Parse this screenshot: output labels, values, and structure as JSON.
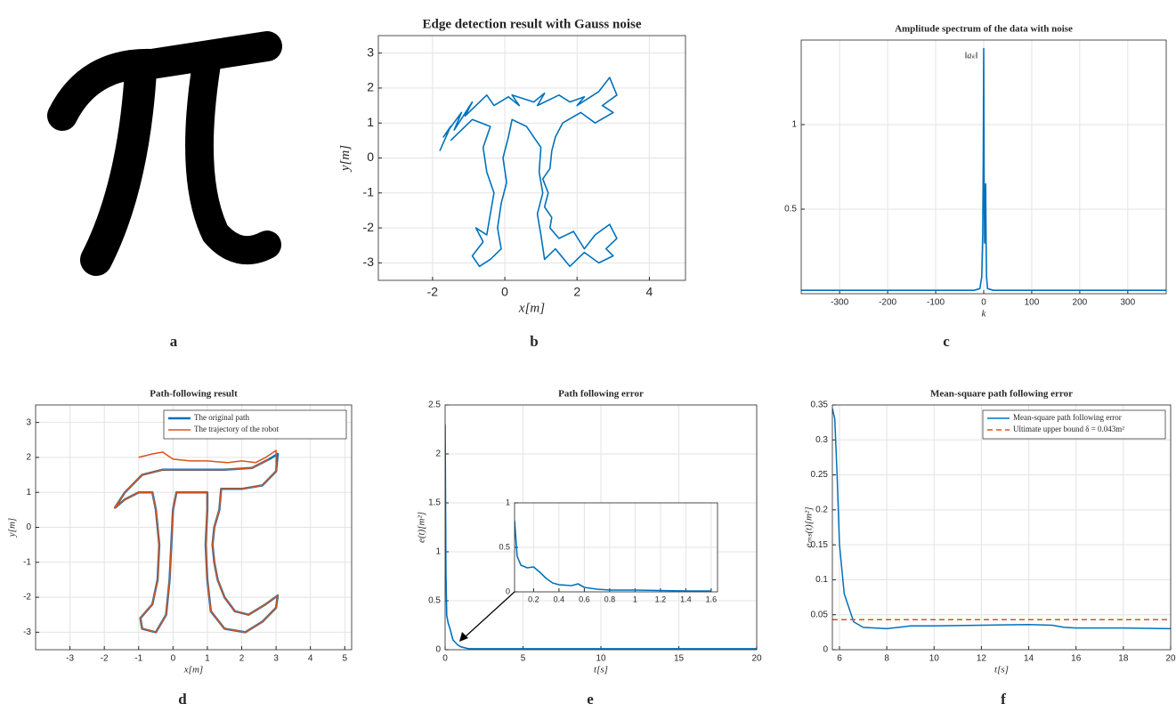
{
  "chart_data": [
    {
      "type": "image",
      "panel_label": "a"
    },
    {
      "type": "line",
      "panel_label": "b",
      "title": "Edge detection result with Gauss noise",
      "xlabel": "x[m]",
      "ylabel": "y[m]",
      "xlim": [
        -3.5,
        5
      ],
      "xticks": [
        -2,
        0,
        2,
        4
      ],
      "ylim": [
        -3.5,
        3.5
      ],
      "yticks": [
        -3,
        -2,
        -1,
        0,
        1,
        2,
        3
      ],
      "grid": true,
      "series": [
        {
          "color": "#0072bd",
          "x": [
            -1.8,
            -1.5,
            -1.7,
            -1.2,
            -1.4,
            -0.9,
            -1.1,
            -0.5,
            -0.3,
            0.1,
            0.4,
            0.2,
            0.8,
            1.1,
            0.9,
            1.5,
            1.8,
            2.2,
            2.0,
            2.6,
            2.9,
            3.1,
            2.7,
            3.0,
            2.5,
            2.1,
            1.6,
            1.4,
            1.3,
            1.25,
            1.05,
            1.2,
            1.1,
            1.3,
            1.25,
            1.5,
            1.9,
            2.2,
            2.5,
            2.9,
            3.1,
            2.8,
            3.0,
            2.6,
            2.2,
            1.8,
            1.4,
            1.1,
            1.0,
            0.9,
            1.05,
            0.95,
            1.0,
            0.6,
            0.2,
            0.1,
            -0.05,
            0.05,
            -0.1,
            -0.2,
            -0.1,
            -0.4,
            -0.7,
            -0.9,
            -0.6,
            -0.8,
            -0.5,
            -0.4,
            -0.3,
            -0.5,
            -0.6,
            -0.4,
            -0.9,
            -1.2,
            -1.5
          ],
          "values": [
            0.2,
            0.9,
            0.6,
            1.3,
            0.8,
            1.6,
            1.2,
            1.8,
            1.5,
            1.75,
            1.5,
            1.8,
            1.6,
            1.85,
            1.5,
            1.8,
            1.6,
            1.75,
            1.5,
            1.9,
            2.3,
            1.8,
            1.5,
            1.3,
            1.0,
            1.3,
            1.0,
            0.6,
            0.2,
            -0.3,
            -0.6,
            -1.0,
            -1.4,
            -1.7,
            -2.0,
            -2.3,
            -2.1,
            -2.6,
            -2.2,
            -1.9,
            -2.3,
            -2.6,
            -2.8,
            -3.0,
            -2.7,
            -3.1,
            -2.6,
            -2.9,
            -2.2,
            -1.6,
            -1.0,
            -0.4,
            0.3,
            0.9,
            1.1,
            0.6,
            0.0,
            -0.7,
            -1.3,
            -2.0,
            -2.6,
            -2.9,
            -3.1,
            -2.8,
            -2.4,
            -2.0,
            -2.2,
            -1.6,
            -1.0,
            -0.4,
            0.3,
            0.9,
            1.1,
            0.8,
            0.5
          ]
        }
      ]
    },
    {
      "type": "line",
      "panel_label": "c",
      "title": "Amplitude spectrum of the data with noise",
      "xlabel": "k",
      "annotation": "‖aₖ‖",
      "xlim": [
        -380,
        380
      ],
      "xticks": [
        -300,
        -200,
        -100,
        0,
        100,
        200,
        300
      ],
      "ylim": [
        0,
        1.5
      ],
      "yticks": [
        0.5,
        1
      ],
      "grid": true,
      "series": [
        {
          "color": "#0072bd",
          "x": [
            -380,
            -300,
            -200,
            -100,
            -20,
            -8,
            -4,
            -2,
            -1,
            0,
            1,
            2,
            3,
            4,
            5,
            6,
            8,
            20,
            100,
            200,
            300,
            380
          ],
          "values": [
            0.02,
            0.02,
            0.02,
            0.02,
            0.02,
            0.03,
            0.1,
            0.35,
            0.8,
            1.45,
            0.6,
            0.3,
            0.5,
            0.65,
            0.3,
            0.1,
            0.03,
            0.02,
            0.02,
            0.02,
            0.02,
            0.02
          ]
        }
      ]
    },
    {
      "type": "line",
      "panel_label": "d",
      "title": "Path-following result",
      "xlabel": "x[m]",
      "ylabel": "y[m]",
      "xlim": [
        -4,
        5.2
      ],
      "xticks": [
        -3,
        -2,
        -1,
        0,
        1,
        2,
        3,
        4,
        5
      ],
      "ylim": [
        -3.5,
        3.5
      ],
      "yticks": [
        -3,
        -2,
        -1,
        0,
        1,
        2,
        3
      ],
      "grid": true,
      "legend": "upper right",
      "series": [
        {
          "name": "The original path",
          "color": "#0072bd",
          "width": 2.5,
          "x": [
            -1.7,
            -1.4,
            -0.9,
            -0.3,
            0.5,
            1.5,
            2.3,
            2.8,
            3.05,
            3.0,
            2.6,
            2.0,
            1.4,
            1.35,
            1.2,
            1.15,
            1.2,
            1.3,
            1.5,
            1.8,
            2.2,
            2.7,
            3.05,
            3.0,
            2.6,
            2.1,
            1.5,
            1.1,
            1.0,
            0.95,
            1.0,
            1.0,
            0.1,
            0.0,
            -0.05,
            -0.1,
            -0.2,
            -0.5,
            -0.9,
            -0.95,
            -0.6,
            -0.45,
            -0.4,
            -0.5,
            -0.6,
            -1.0,
            -1.4,
            -1.7
          ],
          "values": [
            0.55,
            1.0,
            1.5,
            1.65,
            1.65,
            1.65,
            1.7,
            1.95,
            2.1,
            1.6,
            1.2,
            1.1,
            1.1,
            0.5,
            0.0,
            -0.5,
            -1.0,
            -1.5,
            -2.0,
            -2.4,
            -2.5,
            -2.2,
            -1.95,
            -2.3,
            -2.7,
            -3.0,
            -2.9,
            -2.4,
            -1.5,
            -0.5,
            0.5,
            1.0,
            1.0,
            0.5,
            -0.5,
            -1.5,
            -2.5,
            -3.0,
            -2.9,
            -2.6,
            -2.2,
            -1.5,
            -0.5,
            0.5,
            1.0,
            1.0,
            0.8,
            0.55
          ]
        },
        {
          "name": "The trajectory of the robot",
          "color": "#d95319",
          "width": 1.5,
          "x": [
            -1.0,
            -0.6,
            -0.3,
            0.0,
            0.5,
            1.0,
            1.6,
            2.0,
            2.4,
            2.7,
            3.0,
            3.0,
            2.6,
            2.0,
            1.4,
            1.35,
            1.2,
            1.15,
            1.2,
            1.3,
            1.5,
            1.8,
            2.2,
            2.7,
            3.05,
            3.0,
            2.6,
            2.1,
            1.5,
            1.1,
            1.0,
            0.95,
            1.0,
            1.0,
            0.1,
            0.0,
            -0.05,
            -0.1,
            -0.2,
            -0.5,
            -0.9,
            -0.95,
            -0.6,
            -0.45,
            -0.4,
            -0.5,
            -0.6,
            -1.0,
            -1.4,
            -1.7,
            -1.4,
            -0.9,
            -0.3,
            0.5,
            1.5,
            2.3,
            2.8
          ],
          "values": [
            2.0,
            2.1,
            2.15,
            1.95,
            1.9,
            1.9,
            1.85,
            1.9,
            1.85,
            2.0,
            2.2,
            1.6,
            1.2,
            1.1,
            1.1,
            0.5,
            0.0,
            -0.5,
            -1.0,
            -1.5,
            -2.0,
            -2.4,
            -2.5,
            -2.2,
            -1.95,
            -2.3,
            -2.7,
            -3.0,
            -2.9,
            -2.4,
            -1.5,
            -0.5,
            0.5,
            1.0,
            1.0,
            0.5,
            -0.5,
            -1.5,
            -2.5,
            -3.0,
            -2.9,
            -2.6,
            -2.2,
            -1.5,
            -0.5,
            0.5,
            1.0,
            1.0,
            0.8,
            0.55,
            1.0,
            1.5,
            1.65,
            1.65,
            1.65,
            1.7,
            1.95
          ]
        }
      ]
    },
    {
      "type": "line",
      "panel_label": "e",
      "title": "Path following error",
      "xlabel": "t[s]",
      "ylabel": "e(t)[m²]",
      "xlim": [
        0,
        20
      ],
      "xticks": [
        0,
        5,
        10,
        15,
        20
      ],
      "ylim": [
        0,
        2.5
      ],
      "yticks": [
        0,
        0.5,
        1,
        1.5,
        2,
        2.5
      ],
      "grid": true,
      "series": [
        {
          "color": "#0072bd",
          "x": [
            0,
            0.05,
            0.1,
            0.2,
            0.3,
            0.5,
            0.8,
            1.0,
            1.5,
            2,
            5,
            10,
            15,
            17,
            18,
            20
          ],
          "values": [
            2.3,
            0.8,
            0.35,
            0.27,
            0.22,
            0.1,
            0.05,
            0.03,
            0.01,
            0.01,
            0.01,
            0.01,
            0.01,
            0.01,
            0.01,
            0.01
          ]
        }
      ],
      "inset": {
        "xlim": [
          0.05,
          1.65
        ],
        "xticks": [
          0.2,
          0.4,
          0.6,
          0.8,
          1,
          1.2,
          1.4,
          1.6
        ],
        "ylim": [
          0,
          1
        ],
        "yticks": [
          0,
          0.5,
          1
        ],
        "grid": true,
        "series": [
          {
            "color": "#0072bd",
            "x": [
              0.05,
              0.07,
              0.1,
              0.15,
              0.2,
              0.25,
              0.3,
              0.35,
              0.4,
              0.5,
              0.55,
              0.6,
              0.7,
              0.8,
              1.0,
              1.2,
              1.4,
              1.6
            ],
            "values": [
              0.8,
              0.4,
              0.3,
              0.27,
              0.28,
              0.22,
              0.15,
              0.1,
              0.08,
              0.07,
              0.09,
              0.05,
              0.03,
              0.02,
              0.02,
              0.015,
              0.01,
              0.01
            ]
          }
        ]
      }
    },
    {
      "type": "line",
      "panel_label": "f",
      "title": "Mean-square path following error",
      "xlabel": "t[s]",
      "ylabel": "eₘₛ(t)[m²]",
      "xlim": [
        5.7,
        20
      ],
      "xticks": [
        6,
        8,
        10,
        12,
        14,
        16,
        18,
        20
      ],
      "ylim": [
        0,
        0.35
      ],
      "yticks": [
        0,
        0.05,
        0.1,
        0.15,
        0.2,
        0.25,
        0.3,
        0.35
      ],
      "grid": true,
      "legend": "upper right",
      "series": [
        {
          "name": "Mean-square path following error",
          "color": "#0072bd",
          "width": 1.5,
          "x": [
            5.7,
            5.8,
            5.9,
            6.0,
            6.2,
            6.4,
            6.6,
            7,
            8,
            9,
            10,
            12,
            14,
            15,
            15.5,
            16,
            18,
            20
          ],
          "values": [
            0.345,
            0.33,
            0.25,
            0.15,
            0.08,
            0.06,
            0.04,
            0.032,
            0.03,
            0.034,
            0.034,
            0.035,
            0.036,
            0.035,
            0.032,
            0.031,
            0.031,
            0.03
          ]
        },
        {
          "name": "Ultimate upper bound δ = 0.043m²",
          "color": "#d95319",
          "width": 1.5,
          "dashed": true,
          "x": [
            5.7,
            20
          ],
          "values": [
            0.043,
            0.043
          ]
        }
      ]
    }
  ]
}
